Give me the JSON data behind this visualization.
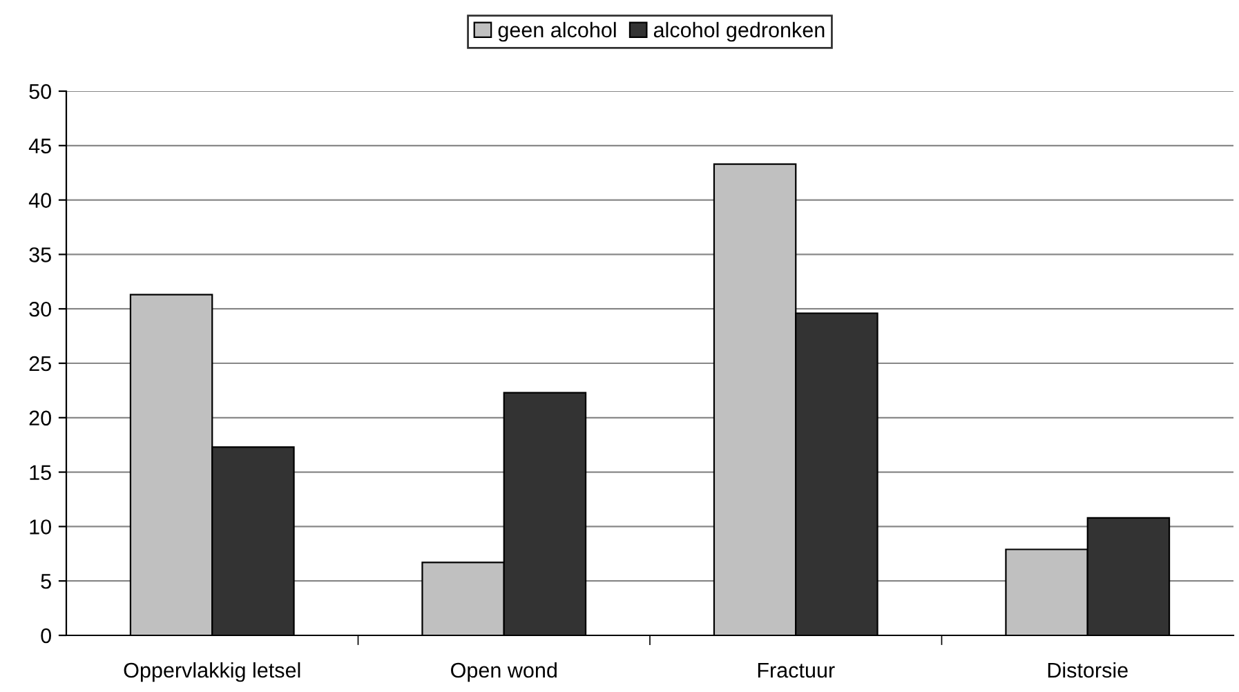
{
  "chart_data": {
    "type": "bar",
    "categories": [
      "Oppervlakkig letsel",
      "Open wond",
      "Fractuur",
      "Distorsie"
    ],
    "series": [
      {
        "name": "geen alcohol",
        "color": "#c0c0c0",
        "values": [
          31.3,
          6.7,
          43.3,
          7.9
        ]
      },
      {
        "name": "alcohol gedronken",
        "color": "#333333",
        "values": [
          17.3,
          22.3,
          29.6,
          10.8
        ]
      }
    ],
    "ylim": [
      0,
      50
    ],
    "yticks": [
      0,
      5,
      10,
      15,
      20,
      25,
      30,
      35,
      40,
      45,
      50
    ],
    "grid": "y",
    "legend": "top"
  }
}
